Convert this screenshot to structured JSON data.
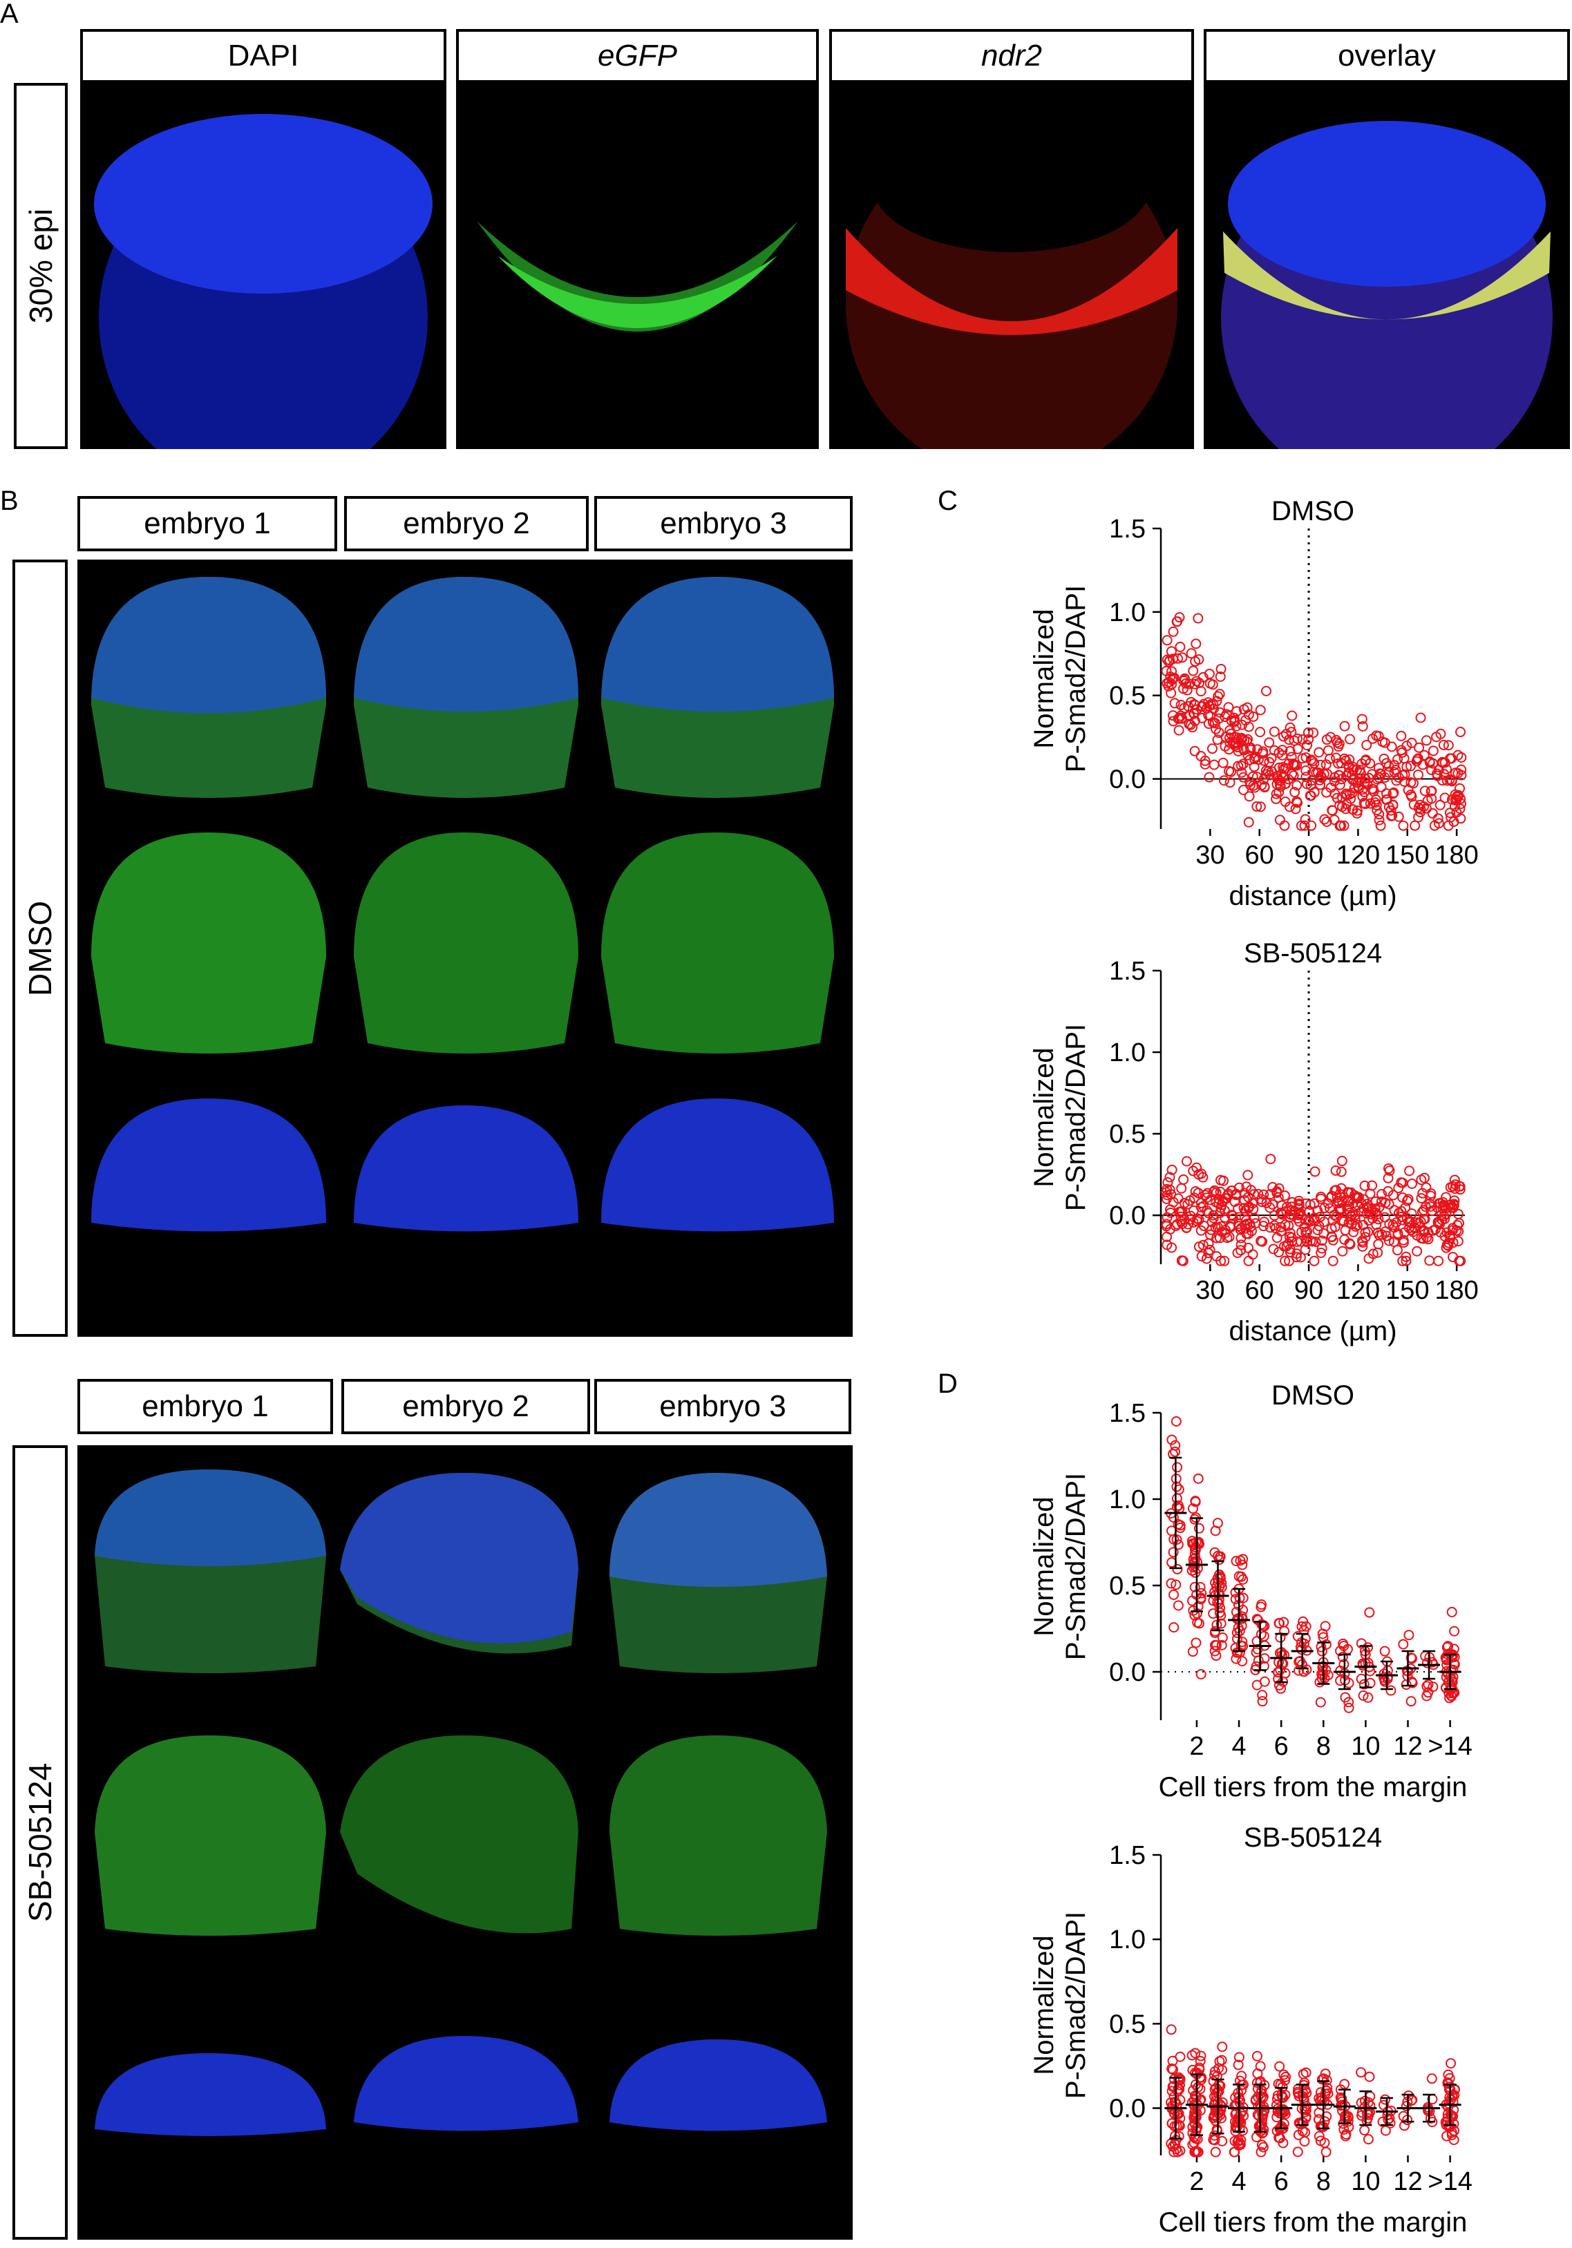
{
  "panel_letters": {
    "a": "A",
    "b": "B",
    "c": "C",
    "d": "D"
  },
  "panelA": {
    "channels": [
      "DAPI",
      "eGFP",
      "ndr2",
      "overlay"
    ],
    "stage": "30% epi"
  },
  "panelB": {
    "dmso": {
      "label": "DMSO",
      "embryos": [
        "embryo 1",
        "embryo 2",
        "embryo 3"
      ]
    },
    "sb": {
      "label": "SB-505124",
      "embryos": [
        "embryo 1",
        "embryo 2",
        "embryo 3"
      ]
    }
  },
  "colors": {
    "marker": "#e8141b",
    "dapi": "#1430d8",
    "gfp": "#2fbf2f",
    "ndr2": "#d81a14",
    "background": "#000000"
  },
  "chart_data": [
    {
      "id": "C-DMSO",
      "type": "scatter",
      "title": "DMSO",
      "xlabel": "distance (µm)",
      "ylabel": [
        "Normalized",
        "P-Smad2/DAPI"
      ],
      "xlim": [
        0,
        185
      ],
      "ylim": [
        -0.3,
        1.5
      ],
      "xticks": [
        30,
        60,
        90,
        120,
        150,
        180
      ],
      "xticklabels": [
        "30",
        "60",
        "90",
        "120",
        "150",
        "180"
      ],
      "yticks": [
        0.0,
        0.5,
        1.0,
        1.5
      ],
      "yticklabels": [
        "0.0",
        "0.5",
        "1.0",
        "1.5"
      ],
      "vline": 90,
      "hline": 0,
      "trend": [
        [
          3,
          0.7
        ],
        [
          10,
          0.62
        ],
        [
          20,
          0.5
        ],
        [
          30,
          0.38
        ],
        [
          40,
          0.28
        ],
        [
          50,
          0.18
        ],
        [
          60,
          0.1
        ],
        [
          70,
          0.05
        ],
        [
          80,
          0.03
        ],
        [
          95,
          0.0
        ],
        [
          185,
          0.0
        ]
      ],
      "spread": 0.15,
      "n": 500
    },
    {
      "id": "C-SB",
      "type": "scatter",
      "title": "SB-505124",
      "xlabel": "distance (µm)",
      "ylabel": [
        "Normalized",
        "P-Smad2/DAPI"
      ],
      "xlim": [
        0,
        185
      ],
      "ylim": [
        -0.3,
        1.5
      ],
      "xticks": [
        30,
        60,
        90,
        120,
        150,
        180
      ],
      "xticklabels": [
        "30",
        "60",
        "90",
        "120",
        "150",
        "180"
      ],
      "yticks": [
        0.0,
        0.5,
        1.0,
        1.5
      ],
      "yticklabels": [
        "0.0",
        "0.5",
        "1.0",
        "1.5"
      ],
      "vline": 90,
      "hline": 0,
      "trend": [
        [
          3,
          0.0
        ],
        [
          185,
          0.0
        ]
      ],
      "spread": 0.14,
      "n": 500
    },
    {
      "id": "D-DMSO",
      "type": "scatter",
      "title": "DMSO",
      "xlabel": "Cell tiers from the margin",
      "ylabel": [
        "Normalized",
        "P-Smad2/DAPI"
      ],
      "xlim": [
        0.3,
        14.7
      ],
      "ylim": [
        -0.28,
        1.5
      ],
      "xticks": [
        2,
        4,
        6,
        8,
        10,
        12,
        14
      ],
      "xticklabels": [
        "2",
        "4",
        "6",
        "8",
        "10",
        "12",
        ">14"
      ],
      "yticks": [
        0.0,
        0.5,
        1.0,
        1.5
      ],
      "yticklabels": [
        "0.0",
        "0.5",
        "1.0",
        "1.5"
      ],
      "hline_dotted": 0,
      "groups": [
        {
          "x": 1,
          "mean": 0.92,
          "sd": 0.32,
          "n": 30
        },
        {
          "x": 2,
          "mean": 0.62,
          "sd": 0.27,
          "n": 45
        },
        {
          "x": 3,
          "mean": 0.44,
          "sd": 0.2,
          "n": 40
        },
        {
          "x": 4,
          "mean": 0.3,
          "sd": 0.18,
          "n": 35
        },
        {
          "x": 5,
          "mean": 0.15,
          "sd": 0.14,
          "n": 22
        },
        {
          "x": 6,
          "mean": 0.08,
          "sd": 0.14,
          "n": 20
        },
        {
          "x": 7,
          "mean": 0.12,
          "sd": 0.1,
          "n": 18
        },
        {
          "x": 8,
          "mean": 0.05,
          "sd": 0.12,
          "n": 18
        },
        {
          "x": 9,
          "mean": 0.0,
          "sd": 0.1,
          "n": 14
        },
        {
          "x": 10,
          "mean": 0.03,
          "sd": 0.12,
          "n": 16
        },
        {
          "x": 11,
          "mean": -0.02,
          "sd": 0.08,
          "n": 10
        },
        {
          "x": 12,
          "mean": 0.02,
          "sd": 0.1,
          "n": 12
        },
        {
          "x": 13,
          "mean": 0.04,
          "sd": 0.08,
          "n": 10
        },
        {
          "x": 14,
          "mean": 0.0,
          "sd": 0.1,
          "n": 40
        }
      ]
    },
    {
      "id": "D-SB",
      "type": "scatter",
      "title": "SB-505124",
      "xlabel": "Cell tiers from the margin",
      "ylabel": [
        "Normalized",
        "P-Smad2/DAPI"
      ],
      "xlim": [
        0.3,
        14.7
      ],
      "ylim": [
        -0.28,
        1.5
      ],
      "xticks": [
        2,
        4,
        6,
        8,
        10,
        12,
        14
      ],
      "xticklabels": [
        "2",
        "4",
        "6",
        "8",
        "10",
        "12",
        ">14"
      ],
      "yticks": [
        0.0,
        0.5,
        1.0,
        1.5
      ],
      "yticklabels": [
        "0.0",
        "0.5",
        "1.0",
        "1.5"
      ],
      "groups": [
        {
          "x": 1,
          "mean": 0.0,
          "sd": 0.18,
          "n": 50
        },
        {
          "x": 2,
          "mean": 0.02,
          "sd": 0.18,
          "n": 55
        },
        {
          "x": 3,
          "mean": 0.01,
          "sd": 0.16,
          "n": 50
        },
        {
          "x": 4,
          "mean": 0.0,
          "sd": 0.14,
          "n": 45
        },
        {
          "x": 5,
          "mean": 0.0,
          "sd": 0.14,
          "n": 42
        },
        {
          "x": 6,
          "mean": 0.0,
          "sd": 0.12,
          "n": 38
        },
        {
          "x": 7,
          "mean": 0.02,
          "sd": 0.12,
          "n": 32
        },
        {
          "x": 8,
          "mean": 0.02,
          "sd": 0.14,
          "n": 30
        },
        {
          "x": 9,
          "mean": 0.01,
          "sd": 0.1,
          "n": 22
        },
        {
          "x": 10,
          "mean": 0.0,
          "sd": 0.1,
          "n": 18
        },
        {
          "x": 11,
          "mean": -0.02,
          "sd": 0.08,
          "n": 10
        },
        {
          "x": 12,
          "mean": 0.0,
          "sd": 0.08,
          "n": 8
        },
        {
          "x": 13,
          "mean": 0.0,
          "sd": 0.08,
          "n": 8
        },
        {
          "x": 14,
          "mean": 0.02,
          "sd": 0.12,
          "n": 40
        }
      ]
    }
  ]
}
